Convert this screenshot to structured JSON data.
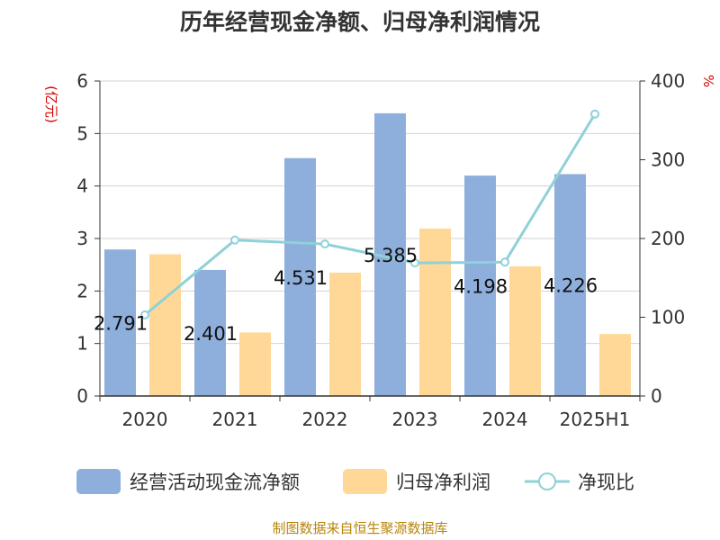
{
  "chart_data": {
    "type": "bar",
    "title": "历年经营现金净额、归母净利润情况",
    "left_unit": "(亿元)",
    "right_unit": "%",
    "categories": [
      "2020",
      "2021",
      "2022",
      "2023",
      "2024",
      "2025H1"
    ],
    "ylim": [
      0,
      6
    ],
    "yticks": [
      0,
      1,
      2,
      3,
      4,
      5,
      6
    ],
    "y2lim": [
      0,
      400
    ],
    "y2ticks": [
      0,
      100,
      200,
      300,
      400
    ],
    "grid": true,
    "legend_position": "bottom",
    "series": [
      {
        "name": "经营活动现金流净额",
        "kind": "bar",
        "axis": "left",
        "color": "#8eaedb",
        "values": [
          2.791,
          2.401,
          4.531,
          5.385,
          4.198,
          4.226
        ],
        "labels": [
          "2.791",
          "2.401",
          "4.531",
          "5.385",
          "4.198",
          "4.226"
        ]
      },
      {
        "name": "归母净利润",
        "kind": "bar",
        "axis": "left",
        "color": "#ffd898",
        "values": [
          2.7,
          1.21,
          2.35,
          3.19,
          2.47,
          1.18
        ]
      },
      {
        "name": "净现比",
        "kind": "line",
        "axis": "right",
        "color": "#8fd1d8",
        "values": [
          103,
          198,
          193,
          169,
          170,
          358
        ]
      }
    ],
    "source": "制图数据来自恒生聚源数据库"
  }
}
